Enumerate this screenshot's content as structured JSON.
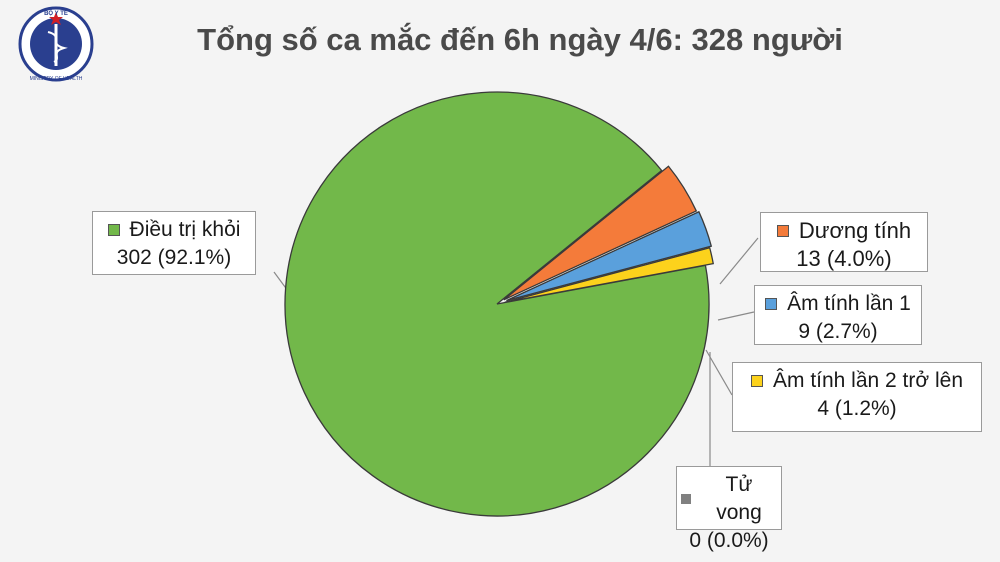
{
  "title": "Tổng số ca mắc đến 6h ngày 4/6: 328 người",
  "logo": {
    "text_top": "BỘ Y TẾ",
    "text_bottom": "MINISTRY OF HEALTH",
    "icon": "ministry-of-health-seal"
  },
  "chart_data": {
    "type": "pie",
    "title": "Tổng số ca mắc đến 6h ngày 4/6: 328 người",
    "total": 328,
    "slices": [
      {
        "name": "Điều trị khỏi",
        "value": 302,
        "percent": "92.1%",
        "color": "#72b84a"
      },
      {
        "name": "Dương tính",
        "value": 13,
        "percent": "4.0%",
        "color": "#f47b3a"
      },
      {
        "name": "Âm tính lần 1",
        "value": 9,
        "percent": "2.7%",
        "color": "#5aa0dc"
      },
      {
        "name": "Âm tính lần 2 trở lên",
        "value": 4,
        "percent": "1.2%",
        "color": "#fcd21c"
      },
      {
        "name": "Tử vong",
        "value": 0,
        "percent": "0.0%",
        "color": "#808080"
      }
    ]
  },
  "labels": [
    {
      "name": "Điều trị khỏi",
      "value_text": "302 (92.1%)",
      "color": "#72b84a"
    },
    {
      "name": "Dương tính",
      "value_text": "13 (4.0%)",
      "color": "#f47b3a"
    },
    {
      "name": "Âm tính lần 1",
      "value_text": "9 (2.7%)",
      "color": "#5aa0dc"
    },
    {
      "name": "Âm tính lần 2 trở lên",
      "value_text": "4 (1.2%)",
      "color": "#fcd21c"
    },
    {
      "name": "Tử vong",
      "value_text": "0 (0.0%)",
      "color": "#808080"
    }
  ]
}
